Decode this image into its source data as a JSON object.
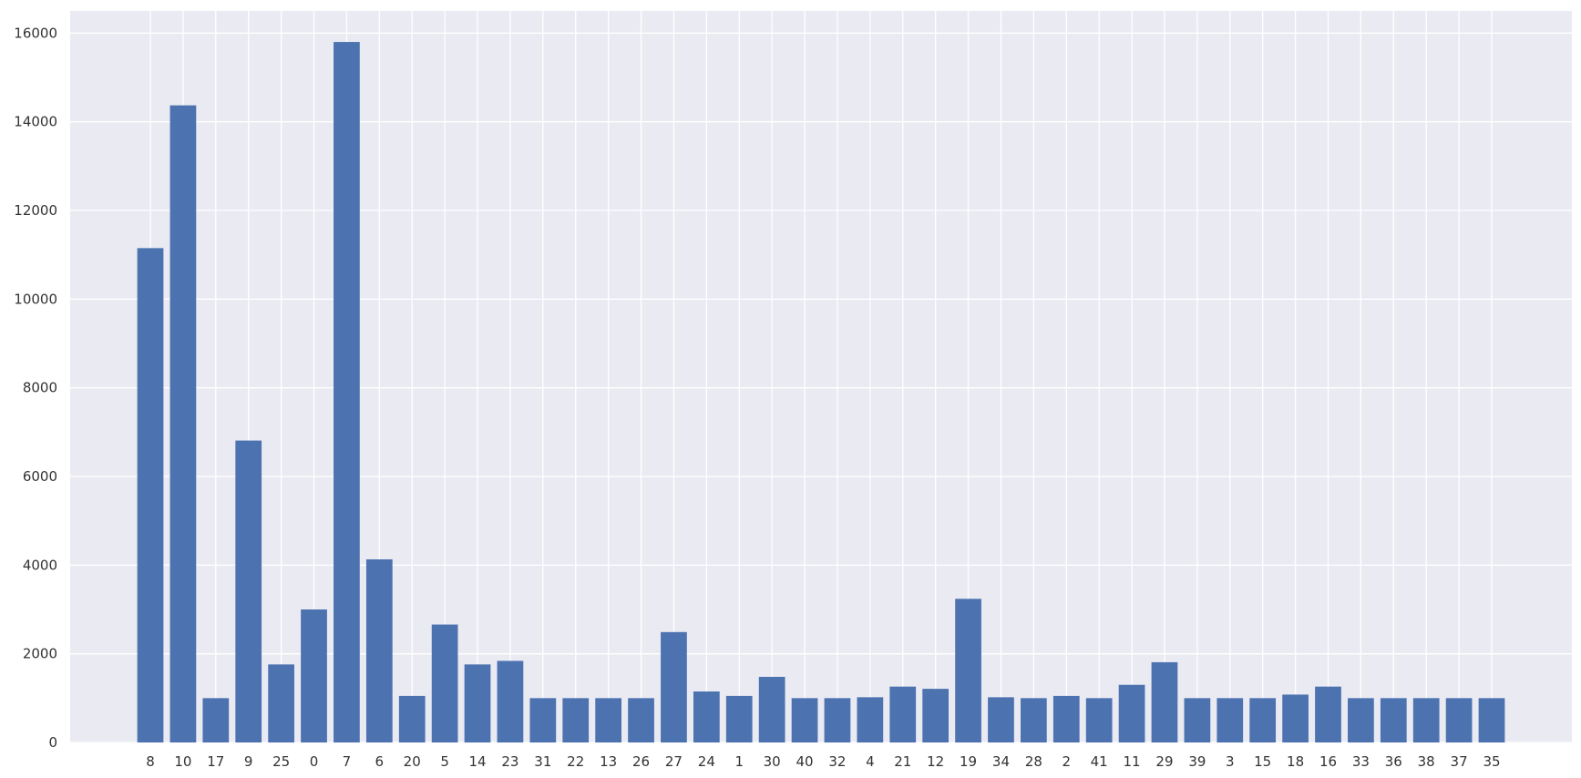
{
  "colors": {
    "background": "#ffffff",
    "plot_background": "#eaeaf2",
    "grid": "#ffffff",
    "bar": "#4c72b0",
    "text": "#333333"
  },
  "chart_data": {
    "type": "bar",
    "title": "",
    "xlabel": "",
    "ylabel": "",
    "categories": [
      "8",
      "10",
      "17",
      "9",
      "25",
      "0",
      "7",
      "6",
      "20",
      "5",
      "14",
      "23",
      "31",
      "22",
      "13",
      "26",
      "27",
      "24",
      "1",
      "30",
      "40",
      "32",
      "4",
      "21",
      "12",
      "19",
      "34",
      "28",
      "2",
      "41",
      "11",
      "29",
      "39",
      "3",
      "15",
      "18",
      "16",
      "33",
      "36",
      "38",
      "37",
      "35"
    ],
    "values": [
      11150,
      14370,
      1000,
      6810,
      1760,
      3000,
      15800,
      4130,
      1050,
      2660,
      1760,
      1840,
      1000,
      1000,
      1000,
      1000,
      2490,
      1150,
      1050,
      1480,
      1000,
      1000,
      1020,
      1260,
      1210,
      3240,
      1020,
      1000,
      1050,
      1000,
      1300,
      1810,
      1000,
      1000,
      1000,
      1080,
      1260,
      1000,
      1000,
      1000,
      1000,
      1000
    ],
    "ylim": [
      0,
      16500
    ],
    "yticks": [
      0,
      2000,
      4000,
      6000,
      8000,
      10000,
      12000,
      14000,
      16000
    ],
    "grid": true,
    "legend": "none"
  }
}
